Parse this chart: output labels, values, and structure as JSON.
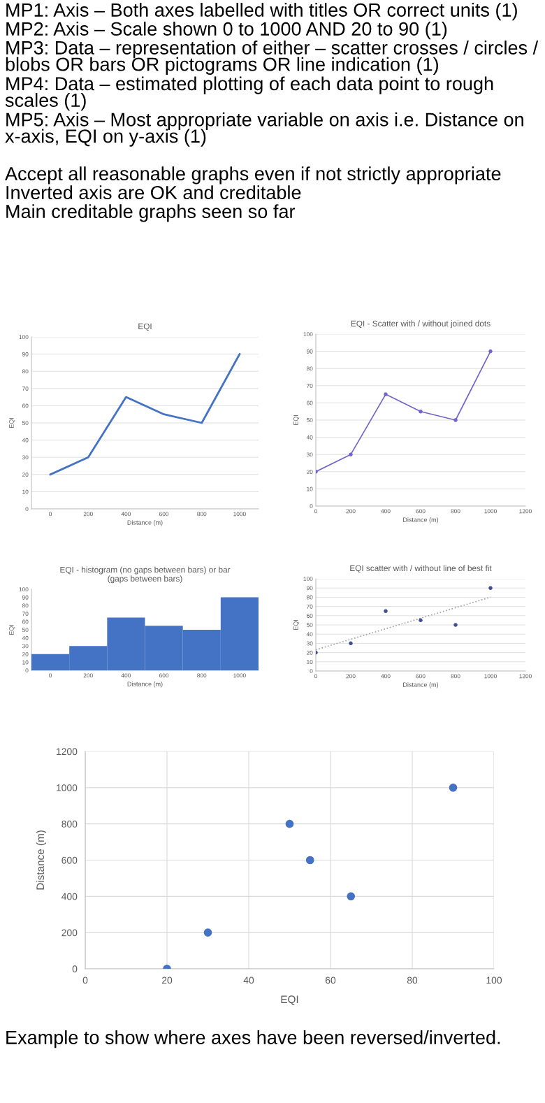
{
  "chart_data": [
    {
      "type": "other",
      "annotations": [
        "MP1: Axis – Both axes labelled with titles OR correct units (1)",
        "MP2: Axis – Scale shown 0 to 1000 AND 20 to 90 (1)",
        "MP3: Data – representation of either – scatter crosses / circles / blobs OR bars OR pictograms OR line indication (1)",
        "MP4: Data – estimated plotting of each data point to rough scales (1)",
        "MP5: Axis – Most appropriate variable on axis i.e. Distance on x-axis, EQI on y-axis (1)",
        "Accept all reasonable graphs even if not strictly appropriate",
        "Inverted axis are OK and creditable",
        "Main creditable graphs seen so far"
      ]
    },
    {
      "type": "line",
      "title": "EQI",
      "xlabel": "Distance (m)",
      "ylabel": "EQI",
      "categories": [
        "0",
        "200",
        "400",
        "600",
        "800",
        "1000"
      ],
      "series": [
        {
          "color": "#4472c4",
          "values": [
            20,
            30,
            65,
            55,
            50,
            90
          ]
        }
      ],
      "ylim": [
        0,
        100
      ],
      "yticks": [
        0,
        10,
        20,
        30,
        40,
        50,
        60,
        70,
        80,
        90,
        100
      ],
      "grid": "y"
    },
    {
      "type": "line",
      "title": "EQI - Scatter with / without joined dots",
      "xlabel": "Distance (m)",
      "ylabel": "EQI",
      "x": [
        0,
        200,
        400,
        600,
        800,
        1000
      ],
      "series": [
        {
          "color": "#7264c8",
          "values": [
            20,
            30,
            65,
            55,
            50,
            90
          ]
        }
      ],
      "xlim": [
        0,
        1200
      ],
      "xticks": [
        0,
        200,
        400,
        600,
        800,
        1000,
        1200
      ],
      "ylim": [
        0,
        100
      ],
      "yticks": [
        0,
        10,
        20,
        30,
        40,
        50,
        60,
        70,
        80,
        90,
        100
      ],
      "grid": "y",
      "marker": "circle"
    },
    {
      "type": "bar",
      "title": "EQI - histogram (no gaps between bars) or bar\n(gaps between bars)",
      "xlabel": "Distance (m)",
      "ylabel": "EQI",
      "categories": [
        "0",
        "200",
        "400",
        "600",
        "800",
        "1000"
      ],
      "series": [
        {
          "color": "#4472c4",
          "values": [
            20,
            30,
            65,
            55,
            50,
            90
          ]
        }
      ],
      "ylim": [
        0,
        100
      ],
      "yticks": [
        0,
        10,
        20,
        30,
        40,
        50,
        60,
        70,
        80,
        90,
        100
      ]
    },
    {
      "type": "scatter",
      "title": "EQI scatter with / without line of best fit",
      "xlabel": "Distance (m)",
      "ylabel": "EQI",
      "x": [
        0,
        200,
        400,
        600,
        800,
        1000
      ],
      "series": [
        {
          "color": "#3f4f8f",
          "marker": "circle",
          "values": [
            20,
            30,
            65,
            55,
            50,
            90
          ]
        },
        {
          "type": "line",
          "color": "#a0a0a0",
          "line_style": "dotted",
          "marker": "none",
          "x": [
            0,
            1000
          ],
          "values": [
            23,
            80
          ]
        }
      ],
      "xlim": [
        0,
        1200
      ],
      "xticks": [
        0,
        200,
        400,
        600,
        800,
        1000,
        1200
      ],
      "ylim": [
        0,
        100
      ],
      "yticks": [
        0,
        10,
        20,
        30,
        40,
        50,
        60,
        70,
        80,
        90,
        100
      ],
      "grid": "y"
    },
    {
      "type": "scatter",
      "xlabel": "EQI",
      "ylabel": "Distance (m)",
      "x": [
        20,
        30,
        65,
        55,
        50,
        90
      ],
      "series": [
        {
          "color": "#4472c4",
          "values": [
            0,
            200,
            400,
            600,
            800,
            1000
          ]
        }
      ],
      "xlim": [
        0,
        100
      ],
      "xticks": [
        0,
        20,
        40,
        60,
        80,
        100
      ],
      "ylim": [
        0,
        1200
      ],
      "yticks": [
        0,
        200,
        400,
        600,
        800,
        1000,
        1200
      ],
      "grid": true,
      "marker": "circle",
      "annotations": [
        "Example to show where axes have been reversed/inverted."
      ]
    }
  ]
}
